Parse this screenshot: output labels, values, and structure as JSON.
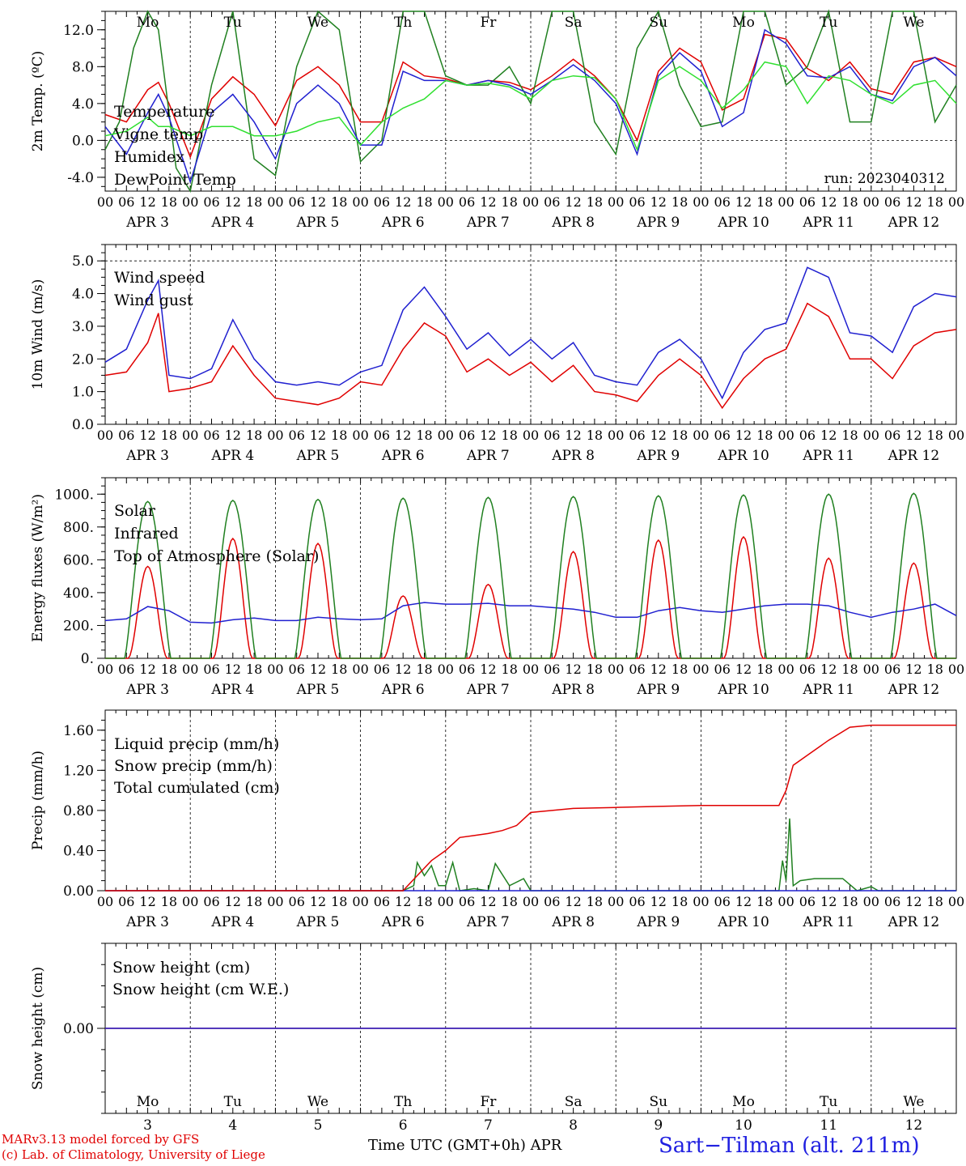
{
  "days": [
    "APR  3",
    "APR  4",
    "APR  5",
    "APR  6",
    "APR  7",
    "APR  8",
    "APR  9",
    "APR 10",
    "APR 11",
    "APR 12"
  ],
  "day_names": [
    "Mo",
    "Tu",
    "We",
    "Th",
    "Fr",
    "Sa",
    "Su",
    "Mo",
    "Tu",
    "We"
  ],
  "day_colors": [
    "#000000",
    "#000000",
    "#000000",
    "#000000",
    "#000000",
    "#e00000",
    "#e00000",
    "#000000",
    "#000000",
    "#000000"
  ],
  "day_numbers": [
    "3",
    "4",
    "5",
    "6",
    "7",
    "8",
    "9",
    "10",
    "11",
    "12"
  ],
  "hour_ticks": [
    "00",
    "06",
    "12",
    "18"
  ],
  "final_hour": "00",
  "run_label": "run: 2023040312",
  "footer": {
    "model": "MARv3.13 model forced by GFS",
    "credit": "(c) Lab. of Climatology, University of Liege",
    "time_axis": "Time UTC (GMT+0h) APR",
    "station": "Sart−Tilman (alt. 211m)"
  },
  "chart_data": [
    {
      "type": "line",
      "ylabel": "2m Temp. (ºC)",
      "ylim": [
        -5.5,
        14
      ],
      "yticks": [
        "12.0",
        "8.0",
        "4.0",
        "0.0",
        "-4.0"
      ],
      "ytick_values": [
        12,
        8,
        4,
        0,
        -4
      ],
      "x_unit": "hours since 2023-04-03 00 UTC",
      "hline": 0,
      "series": [
        {
          "name": "Temperature",
          "color": "#e00000",
          "x": [
            0,
            6,
            12,
            15,
            18,
            24,
            30,
            36,
            42,
            48,
            54,
            60,
            66,
            72,
            78,
            84,
            90,
            96,
            102,
            108,
            114,
            120,
            126,
            132,
            138,
            144,
            150,
            156,
            162,
            168,
            174,
            180,
            186,
            192,
            198,
            204,
            210,
            216,
            222,
            228,
            234,
            240
          ],
          "values": [
            2.8,
            2.0,
            5.5,
            6.3,
            4.0,
            -1.8,
            4.5,
            6.9,
            5.0,
            1.6,
            6.5,
            8.0,
            6.0,
            2.0,
            2.0,
            8.5,
            7.0,
            6.7,
            6.0,
            6.5,
            6.3,
            5.5,
            7.0,
            8.8,
            7.0,
            4.5,
            0.0,
            7.5,
            10.0,
            8.5,
            3.3,
            4.5,
            11.5,
            11.0,
            7.8,
            6.5,
            8.5,
            5.6,
            5.0,
            8.5,
            9.0,
            8.0
          ]
        },
        {
          "name": "Vigne temp",
          "color": "#208020",
          "x": [
            0,
            4,
            8,
            12,
            15,
            20,
            24,
            30,
            36,
            42,
            48,
            54,
            60,
            66,
            72,
            78,
            84,
            90,
            96,
            102,
            108,
            114,
            120,
            126,
            132,
            138,
            144,
            150,
            156,
            162,
            168,
            174,
            180,
            186,
            192,
            198,
            204,
            210,
            216,
            222,
            228,
            234,
            240
          ],
          "values": [
            -1.0,
            2.0,
            10.0,
            14.0,
            12.0,
            -3.0,
            -5.5,
            6.0,
            14.0,
            -2.0,
            -3.8,
            8.0,
            14.0,
            12.0,
            -2.3,
            0.0,
            14.0,
            14.0,
            7.0,
            6.0,
            6.0,
            8.0,
            4.0,
            14.0,
            14.0,
            2.0,
            -1.5,
            10.0,
            14.0,
            6.0,
            1.5,
            2.0,
            14.0,
            14.0,
            6.0,
            8.0,
            14.0,
            2.0,
            2.0,
            14.0,
            14.0,
            2.0,
            6.0
          ]
        },
        {
          "name": "Humidex",
          "color": "#2020d0",
          "x": [
            0,
            6,
            12,
            15,
            18,
            24,
            30,
            36,
            42,
            48,
            54,
            60,
            66,
            72,
            78,
            84,
            90,
            96,
            102,
            108,
            114,
            120,
            126,
            132,
            138,
            144,
            150,
            156,
            162,
            168,
            174,
            180,
            186,
            192,
            198,
            204,
            210,
            216,
            222,
            228,
            234,
            240
          ],
          "values": [
            1.5,
            -1.5,
            3.0,
            5.0,
            2.5,
            -4.5,
            3.0,
            5.0,
            2.0,
            -2.0,
            4.0,
            6.0,
            4.0,
            -0.5,
            -0.5,
            7.5,
            6.5,
            6.5,
            6.0,
            6.5,
            6.0,
            5.0,
            6.5,
            8.2,
            6.5,
            4.0,
            -1.5,
            7.0,
            9.5,
            7.5,
            1.5,
            3.0,
            12.0,
            10.5,
            7.0,
            6.8,
            8.0,
            5.0,
            4.3,
            8.0,
            9.0,
            7.0
          ]
        },
        {
          "name": "DewPoint Temp",
          "color": "#30e030",
          "x": [
            0,
            6,
            12,
            15,
            18,
            24,
            30,
            36,
            42,
            48,
            54,
            60,
            66,
            72,
            78,
            84,
            90,
            96,
            102,
            108,
            114,
            120,
            126,
            132,
            138,
            144,
            150,
            156,
            162,
            168,
            174,
            180,
            186,
            192,
            198,
            204,
            210,
            216,
            222,
            228,
            234,
            240
          ],
          "values": [
            0.5,
            1.0,
            2.5,
            1.5,
            1.5,
            0.5,
            1.5,
            1.5,
            0.5,
            0.5,
            1.0,
            2.0,
            2.5,
            -0.5,
            2.0,
            3.5,
            4.5,
            6.5,
            6.0,
            6.2,
            5.8,
            4.5,
            6.5,
            7.0,
            6.8,
            4.5,
            -1.0,
            6.5,
            8.0,
            6.5,
            3.5,
            5.5,
            8.5,
            8.0,
            4.0,
            7.0,
            6.5,
            5.0,
            4.0,
            6.0,
            6.5,
            4.0
          ]
        }
      ]
    },
    {
      "type": "line",
      "ylabel": "10m Wind (m/s)",
      "ylim": [
        0,
        5.5
      ],
      "yticks": [
        "5.0",
        "4.0",
        "3.0",
        "2.0",
        "1.0",
        "0.0"
      ],
      "ytick_values": [
        5,
        4,
        3,
        2,
        1,
        0
      ],
      "x_unit": "hours since 2023-04-03 00 UTC",
      "hline": 5,
      "series": [
        {
          "name": "Wind speed",
          "color": "#e00000",
          "x": [
            0,
            6,
            12,
            15,
            18,
            24,
            30,
            36,
            42,
            48,
            54,
            60,
            66,
            72,
            78,
            84,
            90,
            96,
            102,
            108,
            114,
            120,
            126,
            132,
            138,
            144,
            150,
            156,
            162,
            168,
            174,
            180,
            186,
            192,
            198,
            204,
            210,
            216,
            222,
            228,
            234,
            240
          ],
          "values": [
            1.5,
            1.6,
            2.5,
            3.4,
            1.0,
            1.1,
            1.3,
            2.4,
            1.5,
            0.8,
            0.7,
            0.6,
            0.8,
            1.3,
            1.2,
            2.3,
            3.1,
            2.7,
            1.6,
            2.0,
            1.5,
            1.9,
            1.3,
            1.8,
            1.0,
            0.9,
            0.7,
            1.5,
            2.0,
            1.5,
            0.5,
            1.4,
            2.0,
            2.3,
            3.7,
            3.3,
            2.0,
            2.0,
            1.4,
            2.4,
            2.8,
            2.9
          ]
        },
        {
          "name": "Wind gust",
          "color": "#2020d0",
          "x": [
            0,
            6,
            12,
            15,
            18,
            24,
            30,
            36,
            42,
            48,
            54,
            60,
            66,
            72,
            78,
            84,
            90,
            96,
            102,
            108,
            114,
            120,
            126,
            132,
            138,
            144,
            150,
            156,
            162,
            168,
            174,
            180,
            186,
            192,
            198,
            204,
            210,
            216,
            222,
            228,
            234,
            240
          ],
          "values": [
            1.9,
            2.3,
            3.8,
            4.4,
            1.5,
            1.4,
            1.7,
            3.2,
            2.0,
            1.3,
            1.2,
            1.3,
            1.2,
            1.6,
            1.8,
            3.5,
            4.2,
            3.3,
            2.3,
            2.8,
            2.1,
            2.6,
            2.0,
            2.5,
            1.5,
            1.3,
            1.2,
            2.2,
            2.6,
            2.0,
            0.8,
            2.2,
            2.9,
            3.1,
            4.8,
            4.5,
            2.8,
            2.7,
            2.2,
            3.6,
            4.0,
            3.9
          ]
        }
      ]
    },
    {
      "type": "line",
      "ylabel": "Energy fluxes (W/m²)",
      "ylim": [
        0,
        1100
      ],
      "yticks": [
        "1000.",
        "800.",
        "600.",
        "400.",
        "200.",
        "0."
      ],
      "ytick_values": [
        1000,
        800,
        600,
        400,
        200,
        0
      ],
      "x_unit": "hours since 2023-04-03 00 UTC",
      "series": [
        {
          "name": "Solar",
          "color": "#e00000",
          "day_peaks": [
            560,
            730,
            700,
            380,
            450,
            650,
            720,
            740,
            610,
            580
          ],
          "x": [
            0,
            24,
            48,
            72,
            96,
            120,
            144,
            168,
            192,
            216,
            240
          ],
          "values": [
            0,
            0,
            0,
            0,
            0,
            0,
            0,
            0,
            0,
            0,
            0
          ]
        },
        {
          "name": "Infrared",
          "color": "#2020d0",
          "x": [
            0,
            6,
            12,
            18,
            24,
            30,
            36,
            42,
            48,
            54,
            60,
            66,
            72,
            78,
            84,
            90,
            96,
            102,
            108,
            114,
            120,
            126,
            132,
            138,
            144,
            150,
            156,
            162,
            168,
            174,
            180,
            186,
            192,
            198,
            204,
            210,
            216,
            222,
            228,
            234,
            240
          ],
          "values": [
            230,
            240,
            315,
            290,
            220,
            215,
            235,
            245,
            230,
            230,
            250,
            240,
            235,
            240,
            320,
            340,
            330,
            330,
            335,
            320,
            320,
            310,
            300,
            280,
            250,
            250,
            290,
            310,
            290,
            280,
            300,
            320,
            330,
            330,
            320,
            280,
            250,
            280,
            300,
            330,
            260
          ]
        },
        {
          "name": "Top of Atmosphere (Solar)",
          "color": "#208020",
          "day_peaks": [
            955,
            962,
            968,
            975,
            980,
            985,
            990,
            995,
            1000,
            1005
          ],
          "x": [
            0,
            24,
            48,
            72,
            96,
            120,
            144,
            168,
            192,
            216,
            240
          ],
          "values": [
            0,
            0,
            0,
            0,
            0,
            0,
            0,
            0,
            0,
            0,
            0
          ]
        }
      ]
    },
    {
      "type": "line",
      "ylabel": "Precip (mm/h)",
      "ylim": [
        0,
        1.8
      ],
      "yticks": [
        "1.60",
        "1.20",
        "0.80",
        "0.40",
        "0.00"
      ],
      "ytick_values": [
        1.6,
        1.2,
        0.8,
        0.4,
        0
      ],
      "x_unit": "hours since 2023-04-03 00 UTC",
      "series": [
        {
          "name": "Liquid precip (mm/h)",
          "color": "#208020",
          "x": [
            0,
            84,
            87,
            88,
            90,
            92,
            94,
            96,
            98,
            100,
            104,
            108,
            110,
            114,
            118,
            120,
            150,
            190,
            191,
            192,
            193,
            194,
            196,
            200,
            208,
            212,
            216,
            218,
            240
          ],
          "values": [
            0,
            0,
            0.05,
            0.28,
            0.15,
            0.25,
            0.05,
            0.05,
            0.28,
            0.0,
            0.02,
            0.0,
            0.27,
            0.05,
            0.12,
            0.0,
            0.0,
            0.0,
            0.3,
            0.1,
            0.72,
            0.05,
            0.1,
            0.12,
            0.12,
            0.0,
            0.04,
            0.0,
            0.0
          ]
        },
        {
          "name": "Snow precip (mm/h)",
          "color": "#2020d0",
          "x": [
            0,
            240
          ],
          "values": [
            0,
            0
          ]
        },
        {
          "name": "Total cumulated (cm)",
          "color": "#e00000",
          "x": [
            0,
            84,
            88,
            92,
            96,
            100,
            104,
            108,
            112,
            116,
            120,
            126,
            132,
            144,
            156,
            168,
            180,
            190,
            192,
            194,
            198,
            204,
            210,
            216,
            240
          ],
          "values": [
            0,
            0,
            0.15,
            0.3,
            0.4,
            0.53,
            0.55,
            0.57,
            0.6,
            0.65,
            0.78,
            0.8,
            0.82,
            0.83,
            0.84,
            0.85,
            0.85,
            0.85,
            1.0,
            1.25,
            1.35,
            1.5,
            1.63,
            1.65,
            1.65
          ]
        }
      ]
    },
    {
      "type": "line",
      "ylabel": "Snow height (cm)",
      "ylim": [
        -1,
        1
      ],
      "yticks": [
        "0.00"
      ],
      "ytick_values": [
        0
      ],
      "x_unit": "hours since 2023-04-03 00 UTC",
      "series": [
        {
          "name": "Snow height (cm)",
          "color": "#e00000",
          "x": [
            0,
            240
          ],
          "values": [
            0,
            0
          ]
        },
        {
          "name": "Snow height (cm W.E.)",
          "color": "#2020d0",
          "x": [
            0,
            240
          ],
          "values": [
            0,
            0
          ]
        }
      ]
    }
  ]
}
